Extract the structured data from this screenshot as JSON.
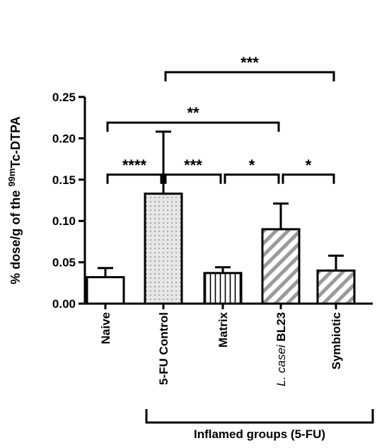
{
  "chart_data": {
    "type": "bar",
    "ylabel_parts": [
      "% dose/g of the ",
      "99m",
      "Tc-DTPA"
    ],
    "ylim": [
      0,
      0.25
    ],
    "yticks": [
      {
        "value": 0.0,
        "label": "0.00"
      },
      {
        "value": 0.05,
        "label": "0.05"
      },
      {
        "value": 0.1,
        "label": "0.10"
      },
      {
        "value": 0.15,
        "label": "0.15"
      },
      {
        "value": 0.2,
        "label": "0.20"
      },
      {
        "value": 0.25,
        "label": "0.25"
      }
    ],
    "categories": [
      {
        "label": "Naive",
        "italic_prefix": "",
        "value": 0.032,
        "error": 0.011,
        "fill": "white"
      },
      {
        "label": "5-FU Control",
        "italic_prefix": "",
        "value": 0.133,
        "error": 0.075,
        "fill": "dots"
      },
      {
        "label": "Matrix",
        "italic_prefix": "",
        "value": 0.037,
        "error": 0.007,
        "fill": "vertical"
      },
      {
        "label": "BL23",
        "italic_prefix": "L. casei ",
        "value": 0.09,
        "error": 0.031,
        "fill": "diagonal"
      },
      {
        "label": "Symbiotic",
        "italic_prefix": "",
        "value": 0.04,
        "error": 0.018,
        "fill": "diagonal"
      }
    ],
    "comparisons": [
      {
        "from": 0,
        "to": 1,
        "label": "****",
        "level": 0.156
      },
      {
        "from": 1,
        "to": 2,
        "label": "***",
        "level": 0.156
      },
      {
        "from": 2,
        "to": 3,
        "label": "*",
        "level": 0.156
      },
      {
        "from": 3,
        "to": 4,
        "label": "*",
        "level": 0.156
      },
      {
        "from": 0,
        "to": 3,
        "label": "**",
        "level": 0.219
      },
      {
        "from": 1,
        "to": 4,
        "label": "***",
        "level": 0.28
      }
    ],
    "group_label": "Inflamed groups (5-FU)",
    "group_from": 1,
    "group_to": 4,
    "colors": {
      "bar_outline": "#000000",
      "hatch": "#9a9a9a",
      "dots": "#7a7a7a",
      "dot_bg": "#e6e6e6"
    }
  }
}
